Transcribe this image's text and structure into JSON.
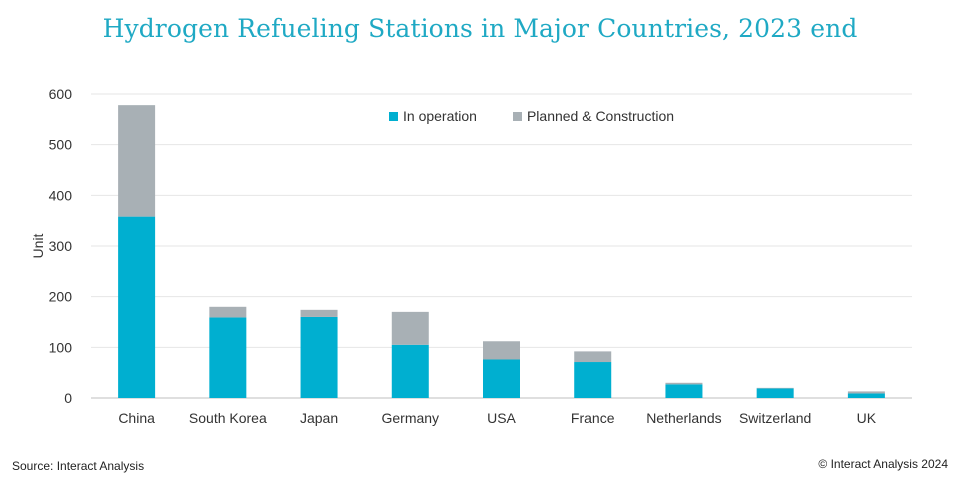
{
  "title": "Hydrogen Refueling Stations in Major Countries, 2023 end",
  "source": "Source: Interact Analysis",
  "copyright": "© Interact Analysis 2024",
  "colors": {
    "in_operation": "#00afd0",
    "planned": "#a8b0b5",
    "title": "#1fa9c4"
  },
  "chart_data": {
    "type": "bar",
    "stacked": true,
    "categories": [
      "China",
      "South Korea",
      "Japan",
      "Germany",
      "USA",
      "France",
      "Netherlands",
      "Switzerland",
      "UK"
    ],
    "series": [
      {
        "name": "In operation",
        "values": [
          358,
          159,
          160,
          105,
          76,
          71,
          27,
          19,
          9
        ]
      },
      {
        "name": "Planned & Construction",
        "values": [
          220,
          21,
          14,
          65,
          36,
          21,
          3,
          1,
          4
        ]
      }
    ],
    "xlabel": "",
    "ylabel": "Unit",
    "ylim": [
      0,
      600
    ],
    "yticks": [
      0,
      100,
      200,
      300,
      400,
      500,
      600
    ],
    "grid": true,
    "legend": "top-center"
  }
}
